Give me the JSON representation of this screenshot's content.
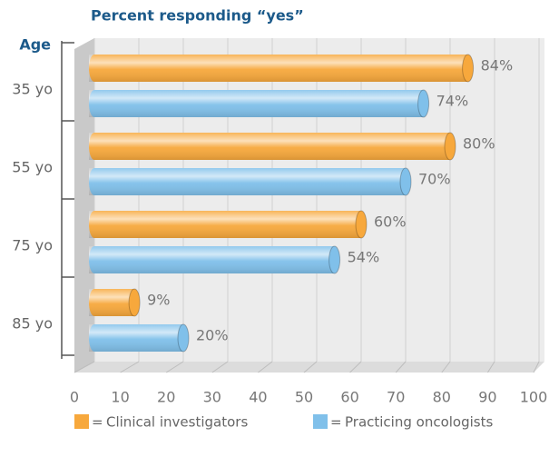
{
  "chart_data": {
    "type": "bar",
    "orientation": "horizontal",
    "title": "Percent responding “yes”",
    "y_label": "Age",
    "categories": [
      "35 yo",
      "55 yo",
      "75 yo",
      "85 yo"
    ],
    "series": [
      {
        "name": "Clinical investigators",
        "color": "#f7a83c",
        "values": [
          84,
          80,
          60,
          9
        ],
        "value_labels": [
          "84%",
          "80%",
          "60%",
          "9%"
        ]
      },
      {
        "name": "Practicing oncologists",
        "color": "#80c0ea",
        "values": [
          74,
          70,
          54,
          20
        ],
        "value_labels": [
          "74%",
          "70%",
          "54%",
          "20%"
        ]
      }
    ],
    "legend_prefix": "=",
    "xlim": [
      0,
      100
    ],
    "xticks": [
      0,
      10,
      20,
      30,
      40,
      50,
      60,
      70,
      80,
      90,
      100
    ],
    "grid": true
  }
}
